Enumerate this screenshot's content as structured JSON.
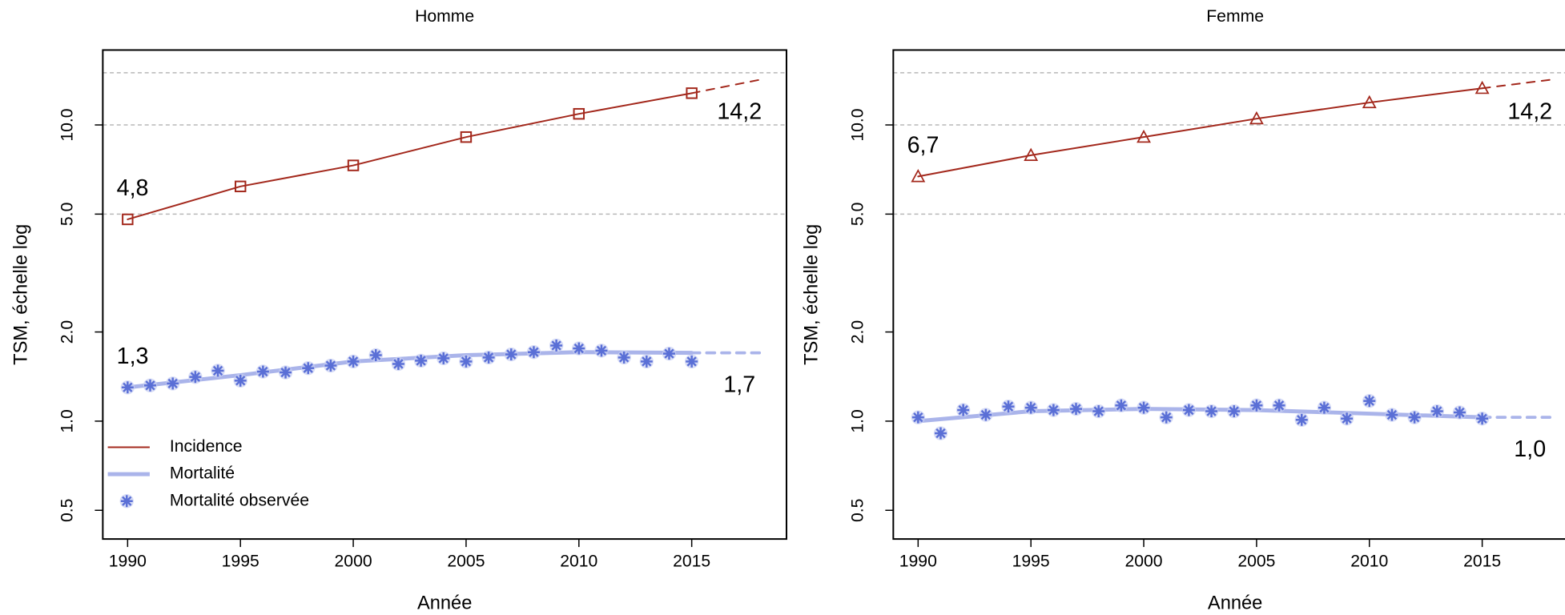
{
  "chart_data": [
    {
      "type": "line",
      "title": "Homme",
      "xlabel": "Année",
      "ylabel": "TSM, échelle log",
      "log_y": true,
      "xlim": [
        1988.9,
        2019.2
      ],
      "ylim": [
        0.4,
        17.9
      ],
      "xticks": [
        1990,
        1995,
        2000,
        2005,
        2010,
        2015
      ],
      "yticks": [
        0.5,
        {
          "value": 1,
          "label": "1.0"
        },
        {
          "value": 2,
          "label": "2.0"
        },
        {
          "value": 5,
          "label": "5.0"
        },
        {
          "value": 10,
          "label": "10.0"
        }
      ],
      "grid_lines": [
        5,
        10,
        15
      ],
      "legend": "bottom-left",
      "series": [
        {
          "name": "Incidence",
          "color": "#a3281c",
          "label_color": "#a3281c",
          "marker": "square",
          "x": [
            1990,
            1995,
            2000,
            2005,
            2010,
            2015
          ],
          "values": [
            4.8,
            6.2,
            7.3,
            9.1,
            10.9,
            12.8
          ],
          "value_labels": [
            "4,8",
            null,
            null,
            null,
            null,
            null
          ]
        },
        {
          "color": "#a3281c",
          "label_color": "#a3281c",
          "dashed": true,
          "x": [
            2015,
            2018
          ],
          "values": [
            12.8,
            14.2
          ],
          "value_labels": [
            null,
            "14,2"
          ]
        },
        {
          "name": "Mortalité",
          "color": "#aab4ea",
          "label_color": "#1414e6",
          "width": 4,
          "x": [
            1990,
            1995,
            2000,
            2005,
            2010,
            2015
          ],
          "values": [
            1.3,
            1.43,
            1.59,
            1.67,
            1.71,
            1.7
          ],
          "value_labels": [
            "1,3",
            null,
            null,
            null,
            null,
            null
          ]
        },
        {
          "color": "#aab4ea",
          "label_color": "#1414e6",
          "dashed": true,
          "width": 3,
          "x": [
            2015,
            2018
          ],
          "values": [
            1.7,
            1.7
          ],
          "value_labels": [
            null,
            "1,7"
          ]
        },
        {
          "name": "Mortalité observée",
          "color": "#5a6fd6",
          "marker": "asterisk",
          "no_line": true,
          "x": [
            1990,
            1991,
            1992,
            1993,
            1994,
            1995,
            1996,
            1997,
            1998,
            1999,
            2000,
            2001,
            2002,
            2003,
            2004,
            2005,
            2006,
            2007,
            2008,
            2009,
            2010,
            2011,
            2012,
            2013,
            2014,
            2015
          ],
          "values": [
            1.3,
            1.32,
            1.34,
            1.41,
            1.48,
            1.37,
            1.47,
            1.46,
            1.51,
            1.54,
            1.59,
            1.67,
            1.56,
            1.6,
            1.63,
            1.59,
            1.64,
            1.68,
            1.71,
            1.8,
            1.76,
            1.73,
            1.64,
            1.59,
            1.69,
            1.59
          ]
        }
      ]
    },
    {
      "type": "line",
      "title": "Femme",
      "xlabel": "Année",
      "ylabel": "TSM, échelle log",
      "log_y": true,
      "xlim": [
        1988.9,
        2019.2
      ],
      "ylim": [
        0.4,
        17.9
      ],
      "xticks": [
        1990,
        1995,
        2000,
        2005,
        2010,
        2015
      ],
      "yticks": [
        0.5,
        {
          "value": 1,
          "label": "1.0"
        },
        {
          "value": 2,
          "label": "2.0"
        },
        {
          "value": 5,
          "label": "5.0"
        },
        {
          "value": 10,
          "label": "10.0"
        }
      ],
      "grid_lines": [
        5,
        10,
        15
      ],
      "legend": false,
      "series": [
        {
          "name": "Incidence",
          "color": "#a3281c",
          "label_color": "#a3281c",
          "marker": "triangle",
          "x": [
            1990,
            1995,
            2000,
            2005,
            2010,
            2015
          ],
          "values": [
            6.7,
            7.9,
            9.1,
            10.5,
            11.9,
            13.3
          ],
          "value_labels": [
            "6,7",
            null,
            null,
            null,
            null,
            null
          ]
        },
        {
          "color": "#a3281c",
          "label_color": "#a3281c",
          "dashed": true,
          "x": [
            2015,
            2018
          ],
          "values": [
            13.3,
            14.2
          ],
          "value_labels": [
            null,
            "14,2"
          ]
        },
        {
          "name": "Mortalité",
          "color": "#aab4ea",
          "label_color": "#1414e6",
          "width": 4,
          "x": [
            1990,
            1995,
            2000,
            2005,
            2010,
            2015
          ],
          "values": [
            1.0,
            1.08,
            1.1,
            1.09,
            1.06,
            1.03
          ]
        },
        {
          "color": "#aab4ea",
          "label_color": "#1414e6",
          "dashed": true,
          "width": 3,
          "x": [
            2015,
            2018
          ],
          "values": [
            1.03,
            1.03
          ],
          "value_labels": [
            null,
            "1,0"
          ]
        },
        {
          "name": "Mortalité observée",
          "color": "#5a6fd6",
          "marker": "asterisk",
          "no_line": true,
          "x": [
            1990,
            1991,
            1992,
            1993,
            1994,
            1995,
            1996,
            1997,
            1998,
            1999,
            2000,
            2001,
            2002,
            2003,
            2004,
            2005,
            2006,
            2007,
            2008,
            2009,
            2010,
            2011,
            2012,
            2013,
            2014,
            2015
          ],
          "values": [
            1.03,
            0.91,
            1.09,
            1.05,
            1.12,
            1.11,
            1.09,
            1.1,
            1.08,
            1.13,
            1.11,
            1.03,
            1.09,
            1.08,
            1.08,
            1.13,
            1.13,
            1.01,
            1.11,
            1.02,
            1.17,
            1.05,
            1.03,
            1.08,
            1.07,
            1.02
          ]
        }
      ]
    }
  ]
}
